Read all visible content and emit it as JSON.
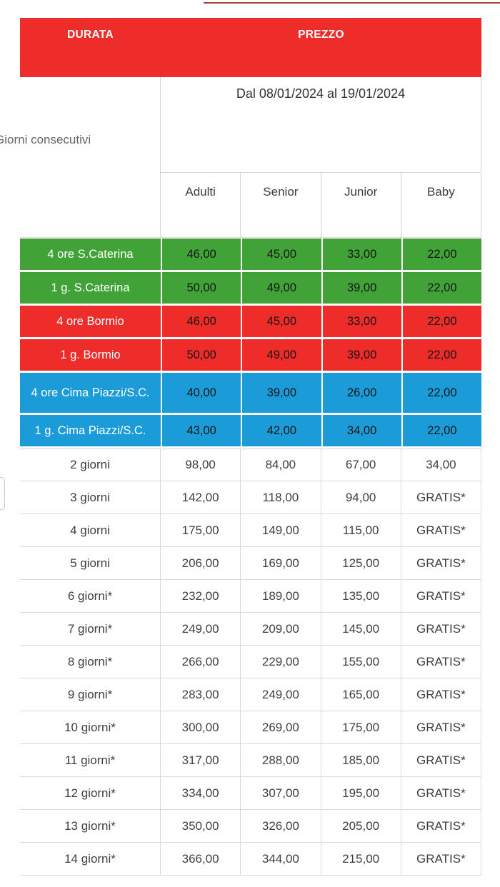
{
  "header": {
    "durata": "DURATA",
    "prezzo": "PREZZO"
  },
  "subheader": {
    "date_range": "Dal 08/01/2024 al 19/01/2024",
    "left_label": "Giorni consecutivi"
  },
  "columns": [
    "Adulti",
    "Senior",
    "Junior",
    "Baby"
  ],
  "colors": {
    "header_red": "#ee2c29",
    "row_green": "#41a337",
    "row_red": "#ee2c29",
    "row_blue": "#1b9cd8",
    "grid_border": "#d6d6d6",
    "top_line": "#a94442"
  },
  "rows": [
    {
      "label": "4 ore S.Caterina",
      "color": "green",
      "tall": false,
      "values": [
        "46,00",
        "45,00",
        "33,00",
        "22,00"
      ]
    },
    {
      "label": "1 g. S.Caterina",
      "color": "green",
      "tall": false,
      "values": [
        "50,00",
        "49,00",
        "39,00",
        "22,00"
      ]
    },
    {
      "label": "4 ore Bormio",
      "color": "red",
      "tall": false,
      "values": [
        "46,00",
        "45,00",
        "33,00",
        "22,00"
      ]
    },
    {
      "label": "1 g. Bormio",
      "color": "red",
      "tall": false,
      "values": [
        "50,00",
        "49,00",
        "39,00",
        "22,00"
      ]
    },
    {
      "label": "4 ore Cima Piazzi/S.C.",
      "color": "blue",
      "tall": true,
      "values": [
        "40,00",
        "39,00",
        "26,00",
        "22,00"
      ]
    },
    {
      "label": "1 g. Cima Piazzi/S.C.",
      "color": "blue",
      "tall": false,
      "values": [
        "43,00",
        "42,00",
        "34,00",
        "22,00"
      ]
    },
    {
      "label": "2 giorni",
      "color": "white",
      "tall": false,
      "values": [
        "98,00",
        "84,00",
        "67,00",
        "34,00"
      ]
    },
    {
      "label": "3 giorni",
      "color": "white",
      "tall": false,
      "values": [
        "142,00",
        "118,00",
        "94,00",
        "GRATIS*"
      ]
    },
    {
      "label": "4 giorni",
      "color": "white",
      "tall": false,
      "values": [
        "175,00",
        "149,00",
        "115,00",
        "GRATIS*"
      ]
    },
    {
      "label": "5 giorni",
      "color": "white",
      "tall": false,
      "values": [
        "206,00",
        "169,00",
        "125,00",
        "GRATIS*"
      ]
    },
    {
      "label": "6 giorni*",
      "color": "white",
      "tall": false,
      "values": [
        "232,00",
        "189,00",
        "135,00",
        "GRATIS*"
      ]
    },
    {
      "label": "7 giorni*",
      "color": "white",
      "tall": false,
      "values": [
        "249,00",
        "209,00",
        "145,00",
        "GRATIS*"
      ]
    },
    {
      "label": "8 giorni*",
      "color": "white",
      "tall": false,
      "values": [
        "266,00",
        "229,00",
        "155,00",
        "GRATIS*"
      ]
    },
    {
      "label": "9 giorni*",
      "color": "white",
      "tall": false,
      "values": [
        "283,00",
        "249,00",
        "165,00",
        "GRATIS*"
      ]
    },
    {
      "label": "10 giorni*",
      "color": "white",
      "tall": false,
      "values": [
        "300,00",
        "269,00",
        "175,00",
        "GRATIS*"
      ]
    },
    {
      "label": "11 giorni*",
      "color": "white",
      "tall": false,
      "values": [
        "317,00",
        "288,00",
        "185,00",
        "GRATIS*"
      ]
    },
    {
      "label": "12 giorni*",
      "color": "white",
      "tall": false,
      "values": [
        "334,00",
        "307,00",
        "195,00",
        "GRATIS*"
      ]
    },
    {
      "label": "13 giorni*",
      "color": "white",
      "tall": false,
      "values": [
        "350,00",
        "326,00",
        "205,00",
        "GRATIS*"
      ]
    },
    {
      "label": "14 giorni*",
      "color": "white",
      "tall": false,
      "values": [
        "366,00",
        "344,00",
        "215,00",
        "GRATIS*"
      ]
    }
  ]
}
